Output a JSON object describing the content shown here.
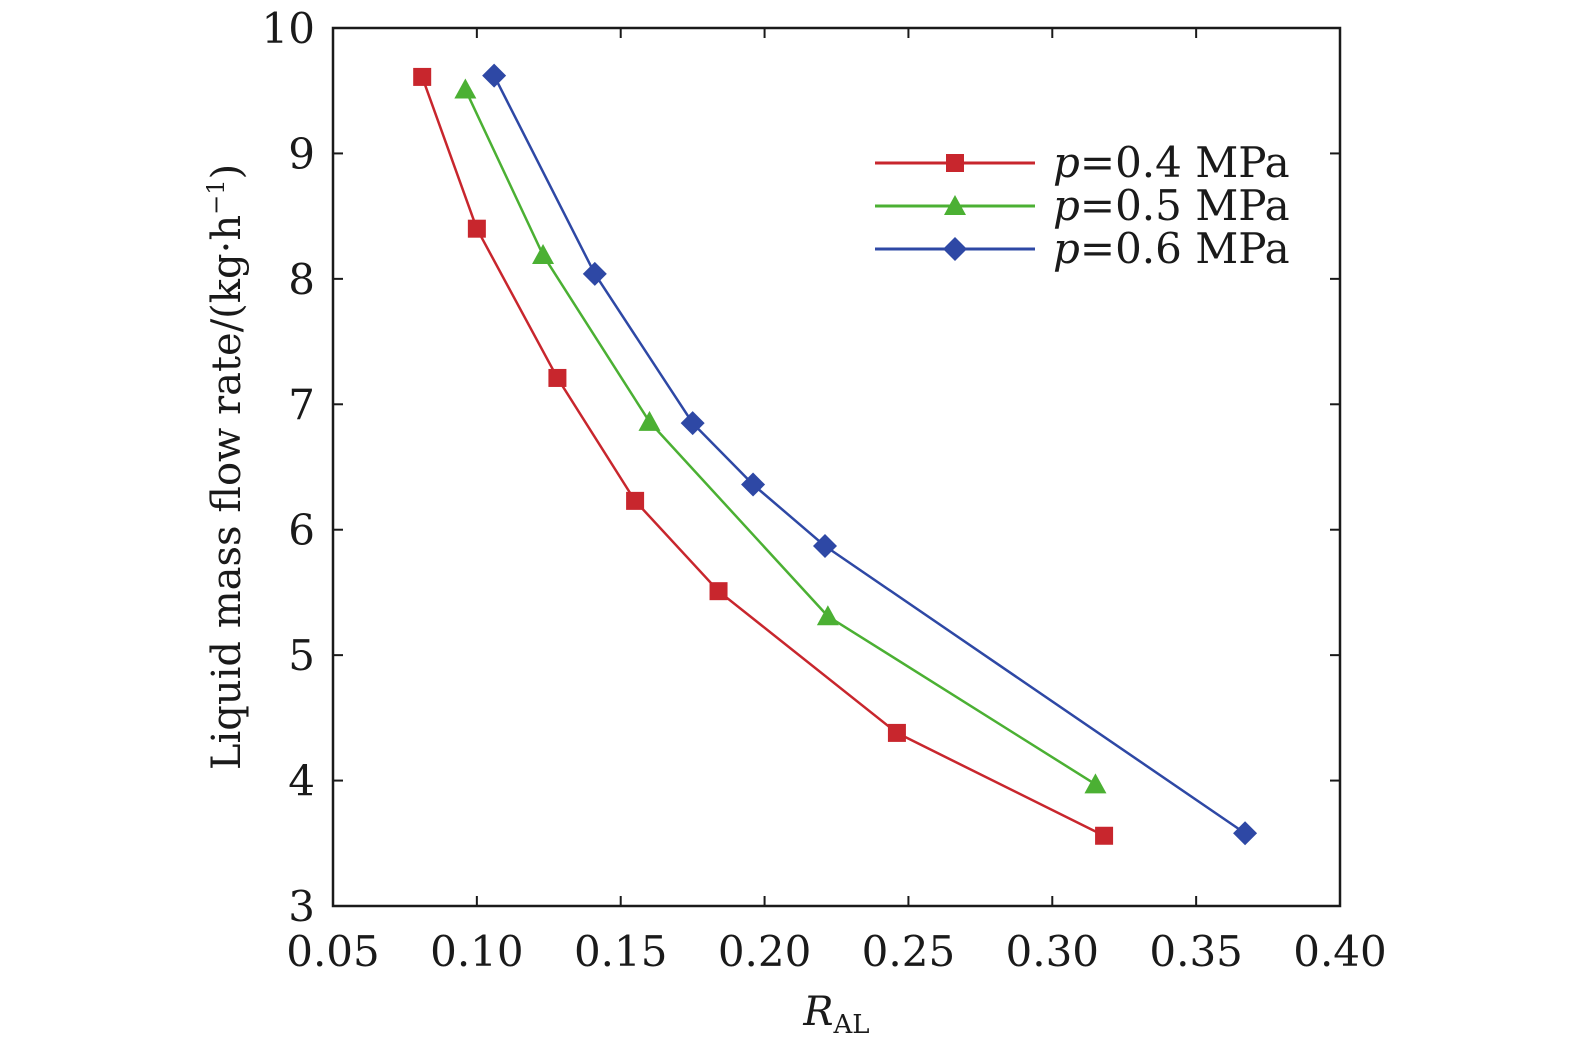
{
  "chart_data": {
    "type": "line",
    "title": "",
    "xlabel_main": "R",
    "xlabel_sub": "AL",
    "ylabel_main": "Liquid mass flow rate/(kg·h",
    "ylabel_sup": "−1",
    "ylabel_close": ")",
    "xlim": [
      0.05,
      0.4
    ],
    "ylim": [
      3,
      10
    ],
    "xticks": [
      0.05,
      0.1,
      0.15,
      0.2,
      0.25,
      0.3,
      0.35,
      0.4
    ],
    "xtick_labels": [
      "0.05",
      "0.10",
      "0.15",
      "0.20",
      "0.25",
      "0.30",
      "0.35",
      "0.40"
    ],
    "yticks": [
      3,
      4,
      5,
      6,
      7,
      8,
      9,
      10
    ],
    "ytick_labels": [
      "3",
      "4",
      "5",
      "6",
      "7",
      "8",
      "9",
      "10"
    ],
    "grid": false,
    "legend_position": "top-right",
    "series": [
      {
        "name": "p=0.4 MPa",
        "legend_var": "p",
        "legend_rest": "=0.4 MPa",
        "color": "#c8262d",
        "marker": "square",
        "x": [
          0.081,
          0.1,
          0.128,
          0.155,
          0.184,
          0.246,
          0.318
        ],
        "y": [
          9.61,
          8.4,
          7.21,
          6.23,
          5.51,
          4.38,
          3.56
        ]
      },
      {
        "name": "p=0.5 MPa",
        "legend_var": "p",
        "legend_rest": "=0.5 MPa",
        "color": "#4bb033",
        "marker": "triangle",
        "x": [
          0.096,
          0.123,
          0.16,
          0.222,
          0.315
        ],
        "y": [
          9.51,
          8.19,
          6.86,
          5.31,
          3.97
        ]
      },
      {
        "name": "p=0.6 MPa",
        "legend_var": "p",
        "legend_rest": "=0.6 MPa",
        "color": "#2e48a5",
        "marker": "diamond",
        "x": [
          0.106,
          0.141,
          0.175,
          0.196,
          0.221,
          0.367
        ],
        "y": [
          9.62,
          8.04,
          6.85,
          6.36,
          5.87,
          3.58
        ]
      }
    ]
  }
}
